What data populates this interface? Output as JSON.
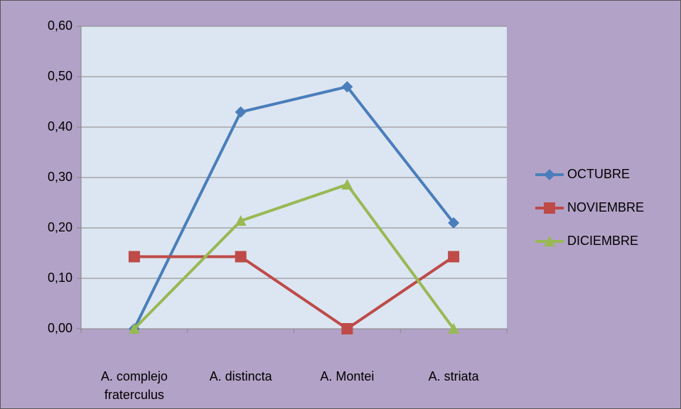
{
  "chart_data": {
    "type": "line",
    "categories": [
      "A. complejo fraterculus",
      "A. distincta",
      "A. Montei",
      "A. striata"
    ],
    "series": [
      {
        "name": "OCTUBRE",
        "color": "#4a7ebb",
        "marker": "diamond",
        "values": [
          0,
          0.43,
          0.48,
          0.21
        ]
      },
      {
        "name": "NOVIEMBRE",
        "color": "#be4b48",
        "marker": "square",
        "values": [
          0.143,
          0.143,
          0,
          0.143
        ]
      },
      {
        "name": "DICIEMBRE",
        "color": "#98b954",
        "marker": "triangle",
        "values": [
          0,
          0.214,
          0.286,
          0
        ]
      }
    ],
    "ylim": [
      0,
      0.6
    ],
    "yticks": [
      {
        "value": 0,
        "label": "0,00"
      },
      {
        "value": 0.1,
        "label": "0,10"
      },
      {
        "value": 0.2,
        "label": "0,20"
      },
      {
        "value": 0.3,
        "label": "0,30"
      },
      {
        "value": 0.4,
        "label": "0,40"
      },
      {
        "value": 0.5,
        "label": "0,50"
      },
      {
        "value": 0.6,
        "label": "0,60"
      }
    ],
    "grid": true,
    "legend": "right"
  }
}
